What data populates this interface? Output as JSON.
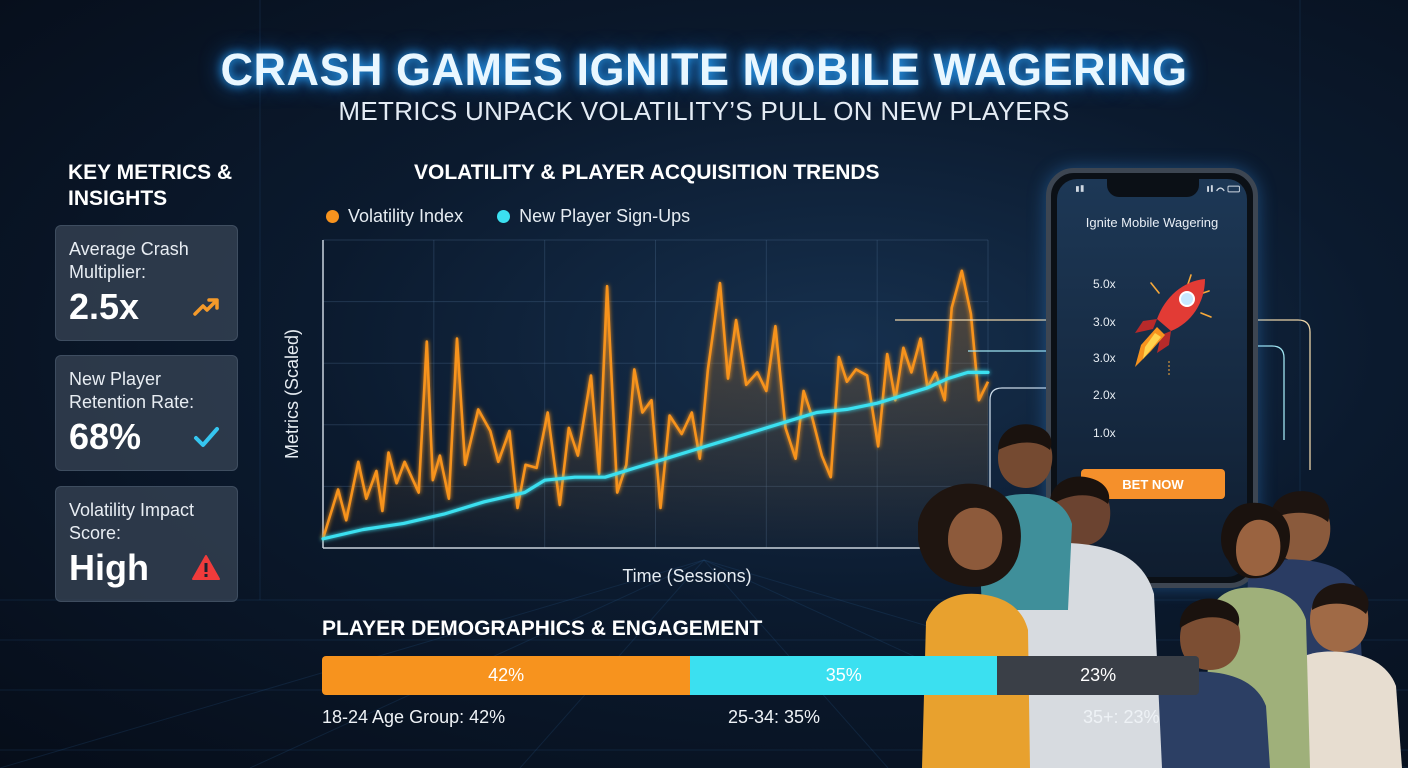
{
  "title": "CRASH GAMES IGNITE MOBILE WAGERING",
  "subtitle": "METRICS UNPACK VOLATILITY’S PULL ON NEW PLAYERS",
  "metrics": {
    "heading": "KEY METRICS & INSIGHTS",
    "cards": [
      {
        "label": "Average Crash Multiplier:",
        "value": "2.5x",
        "icon": "trend-up-icon",
        "color": "#f59a2a"
      },
      {
        "label": "New Player Retention Rate:",
        "value": "68%",
        "icon": "check-icon",
        "color": "#35c6f0"
      },
      {
        "label": "Volatility Impact Score:",
        "value": "High",
        "icon": "warning-icon",
        "color": "#ef3b3b"
      }
    ]
  },
  "chart_data": {
    "type": "line",
    "title": "VOLATILITY & PLAYER ACQUISITION TRENDS",
    "xlabel": "Time (Sessions)",
    "ylabel": "Metrics (Scaled)",
    "ylim": [
      0,
      100
    ],
    "grid": true,
    "legend": "top-left",
    "series": [
      {
        "name": "Volatility Index",
        "color": "#f7931e",
        "x": [
          0,
          1.5,
          2.3,
          3.5,
          4.3,
          5.3,
          5.9,
          6.5,
          7.3,
          8.1,
          9.5,
          10.3,
          10.9,
          11.6,
          12.5,
          13.3,
          14.1,
          15.4,
          16.6,
          17.4,
          18.5,
          19.3,
          20.1,
          21.2,
          22.3,
          23.5,
          24.4,
          25.3,
          26.6,
          27.4,
          28.2,
          29.2,
          30.1,
          30.9,
          31.7,
          32.6,
          33.5,
          34.4,
          35.6,
          36.6,
          37.4,
          38.2,
          39.4,
          40.2,
          41.0,
          42.0,
          43.1,
          44.0,
          44.9,
          45.9,
          46.9,
          47.7,
          48.5,
          49.5,
          50.4,
          51.2,
          52.0,
          52.9,
          54.0,
          55.1,
          56.0,
          56.8,
          57.6,
          58.4,
          59.3,
          60.0,
          60.8,
          61.7,
          62.4,
          63.4,
          64.3,
          65.1,
          66.0
        ],
        "values": [
          3,
          19,
          9,
          28,
          16,
          25,
          12,
          31,
          21,
          28,
          18,
          67,
          22,
          30,
          16,
          68,
          27,
          45,
          38,
          28,
          38,
          13,
          27,
          26,
          44,
          14,
          39,
          30,
          56,
          24,
          85,
          18,
          27,
          58,
          44,
          48,
          13,
          43,
          37,
          44,
          29,
          58,
          86,
          55,
          74,
          53,
          57,
          51,
          72,
          39,
          29,
          51,
          43,
          30,
          23,
          62,
          54,
          58,
          56,
          33,
          63,
          48,
          65,
          57,
          68,
          52,
          57,
          48,
          78,
          90,
          76,
          48,
          54
        ]
      },
      {
        "name": "New Player Sign-Ups",
        "color": "#3be0f0",
        "x": [
          0,
          4,
          8,
          12,
          16,
          20,
          22,
          25,
          28,
          31,
          34,
          37,
          40,
          43,
          46,
          49,
          52,
          55,
          58,
          60,
          62,
          64,
          66
        ],
        "values": [
          3,
          6,
          8,
          11,
          15,
          18,
          22,
          23,
          23,
          26,
          29,
          32,
          35,
          38,
          41,
          44,
          45,
          47,
          50,
          52,
          55,
          57,
          57
        ]
      }
    ]
  },
  "phone": {
    "title": "Ignite Mobile Wagering",
    "multipliers": [
      "5.0x",
      "3.0x",
      "3.0x",
      "2.0x",
      "1.0x"
    ],
    "button": "BET NOW"
  },
  "demographics": {
    "title": "PLAYER DEMOGRAPHICS & ENGAGEMENT",
    "segments": [
      {
        "value": 42,
        "label": "42%",
        "caption": "18-24 Age Group: 42%",
        "color": "#f7931e"
      },
      {
        "value": 35,
        "label": "35%",
        "caption": "25-34: 35%",
        "color": "#3be0f0"
      },
      {
        "value": 23,
        "label": "23%",
        "caption": "35+: 23%",
        "color": "#3a3f47"
      }
    ]
  }
}
